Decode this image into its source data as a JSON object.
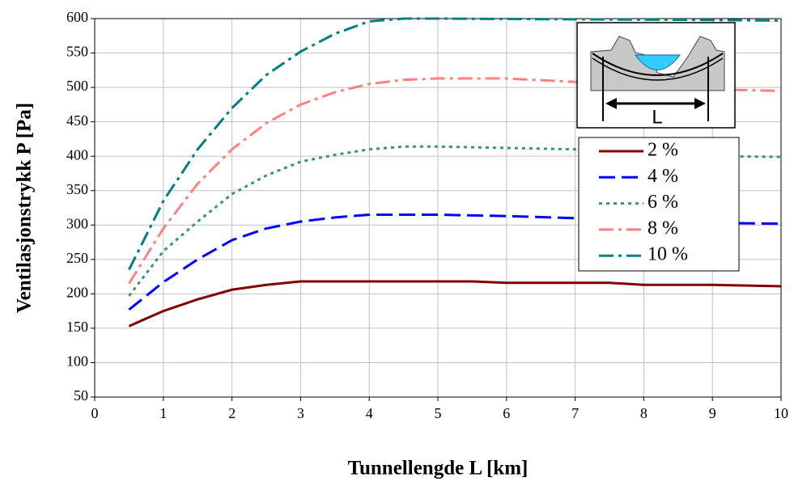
{
  "chart_data": {
    "type": "line",
    "x_label": "Tunnellengde L [km]",
    "y_label": "Ventilasjonstrykk P [Pa]",
    "inset_label": "L",
    "xlim": [
      0,
      10
    ],
    "xticks": [
      0,
      1,
      2,
      3,
      4,
      5,
      6,
      7,
      8,
      9,
      10
    ],
    "ylim": [
      50,
      600
    ],
    "yticks": [
      50,
      100,
      150,
      200,
      250,
      300,
      350,
      400,
      450,
      500,
      550,
      600
    ],
    "grid": true,
    "legend": "right",
    "series": [
      {
        "name": "2 %",
        "color": "#800000",
        "line_style": "solid",
        "x": [
          0.5,
          0.7,
          1,
          1.5,
          2,
          2.5,
          3,
          3.5,
          4,
          4.5,
          5,
          5.5,
          6,
          6.5,
          7,
          7.5,
          8,
          8.5,
          9,
          9.5,
          10
        ],
        "values": [
          153,
          162,
          175,
          192,
          206,
          213,
          218,
          218,
          218,
          218,
          218,
          218,
          216,
          216,
          216,
          216,
          213,
          213,
          213,
          212,
          211
        ]
      },
      {
        "name": "4 %",
        "color": "#0000ff",
        "line_style": "dashed",
        "x": [
          0.5,
          1,
          1.5,
          2,
          2.5,
          3,
          3.5,
          4,
          5,
          6,
          7,
          8,
          9,
          10
        ],
        "values": [
          177,
          217,
          250,
          278,
          295,
          305,
          311,
          315,
          315,
          313,
          310,
          305,
          303,
          302
        ]
      },
      {
        "name": "6 %",
        "color": "#339966",
        "line_style": "dotted",
        "x": [
          0.5,
          1,
          1.5,
          2,
          2.5,
          3,
          3.5,
          4,
          4.5,
          5,
          6,
          7,
          8,
          9,
          10
        ],
        "values": [
          197,
          262,
          305,
          345,
          372,
          392,
          402,
          410,
          414,
          414,
          412,
          410,
          405,
          400,
          399
        ]
      },
      {
        "name": "8 %",
        "color": "#ff8080",
        "line_style": "dashdot",
        "x": [
          0.5,
          1,
          1.5,
          2,
          2.5,
          3,
          3.5,
          4,
          4.5,
          5,
          6,
          7,
          8,
          9,
          10
        ],
        "values": [
          215,
          295,
          360,
          410,
          448,
          475,
          493,
          505,
          511,
          513,
          513,
          508,
          503,
          497,
          495
        ]
      },
      {
        "name": "10 %",
        "color": "#008080",
        "line_style": "dashdot",
        "x": [
          0.5,
          1,
          1.5,
          2,
          2.5,
          3,
          3.5,
          4,
          4.5,
          5,
          9,
          10
        ],
        "values": [
          235,
          335,
          410,
          470,
          518,
          552,
          578,
          596,
          600,
          600,
          598,
          597
        ]
      }
    ]
  }
}
